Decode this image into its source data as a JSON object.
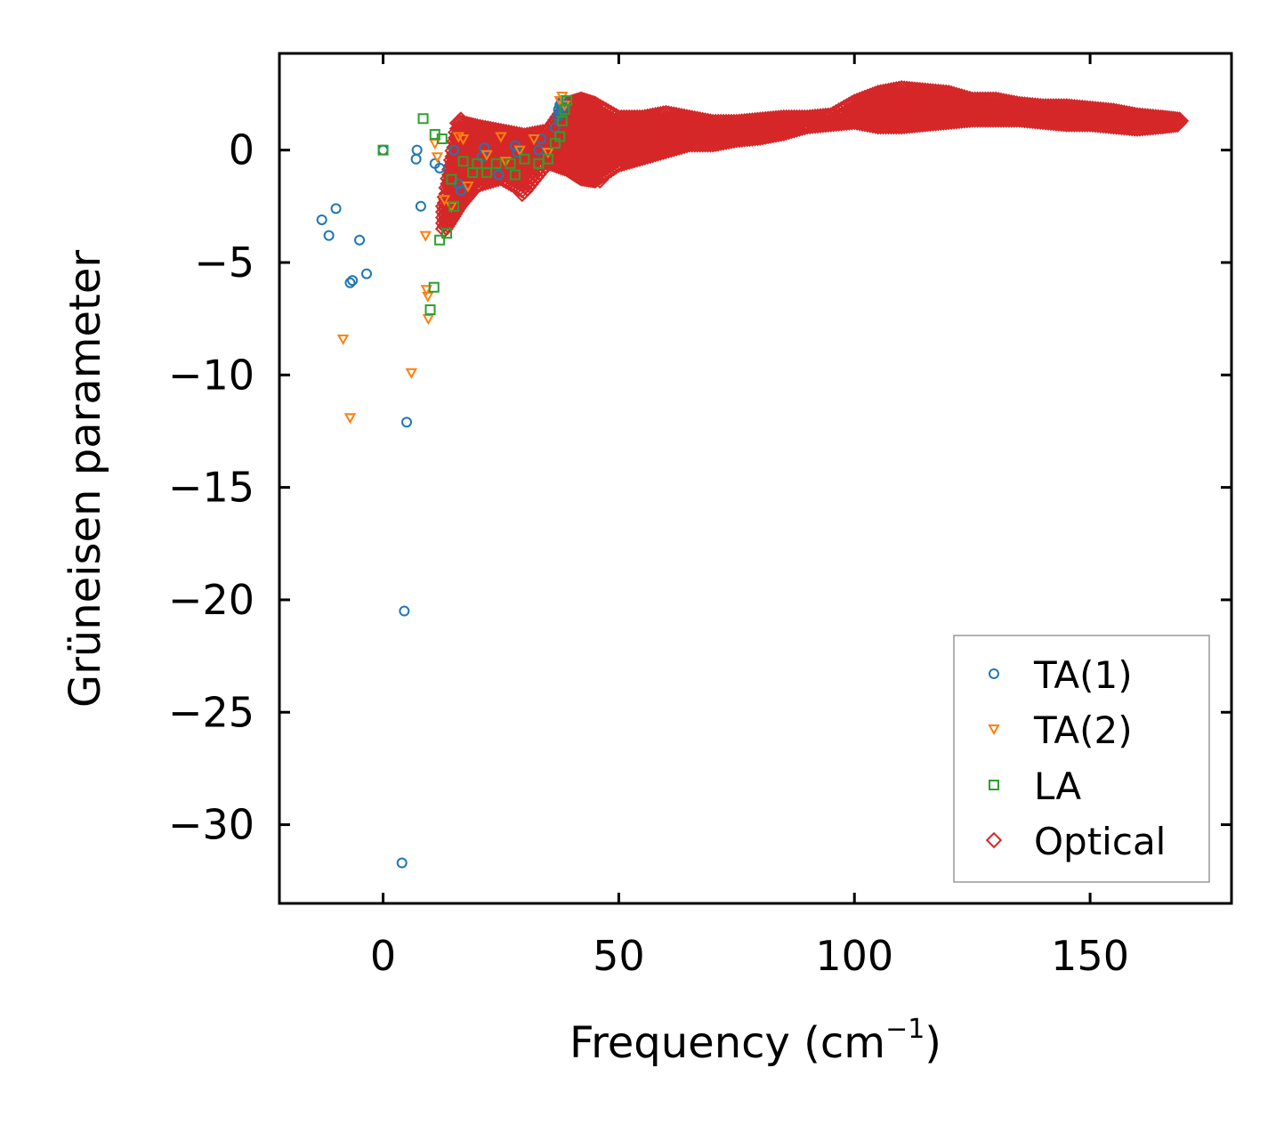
{
  "chart_data": {
    "type": "scatter",
    "title": "",
    "xlabel": "Frequency (cm",
    "xlabel_sup": "−1",
    "xlabel_close": ")",
    "ylabel": "Grüneisen parameter",
    "xlim": [
      -22,
      180
    ],
    "ylim": [
      -33.5,
      4.3
    ],
    "xticks": [
      0,
      50,
      100,
      150
    ],
    "xtick_labels": [
      "0",
      "50",
      "100",
      "150"
    ],
    "yticks": [
      0,
      -5,
      -10,
      -15,
      -20,
      -25,
      -30
    ],
    "ytick_labels": [
      "0",
      "−5",
      "−10",
      "−15",
      "−20",
      "−25",
      "−30"
    ],
    "legend_position": "lower-right",
    "series": [
      {
        "name": "TA(1)",
        "marker": "circle",
        "color": "#1f77b4",
        "points": [
          [
            -13,
            -3.1
          ],
          [
            -11.5,
            -3.8
          ],
          [
            -10,
            -2.6
          ],
          [
            -7,
            -5.9
          ],
          [
            -6.5,
            -5.8
          ],
          [
            -5,
            -4
          ],
          [
            -3.5,
            -5.5
          ],
          [
            0,
            0
          ],
          [
            4,
            -31.7
          ],
          [
            4.5,
            -20.5
          ],
          [
            5,
            -12.1
          ],
          [
            7,
            -0.4
          ],
          [
            7.2,
            0
          ],
          [
            8,
            -2.5
          ],
          [
            11,
            -0.6
          ],
          [
            12,
            -0.8
          ],
          [
            15,
            0
          ],
          [
            16,
            -1.5
          ],
          [
            16.5,
            -1.8
          ],
          [
            21,
            -0.3
          ],
          [
            21.5,
            0.1
          ],
          [
            24.5,
            -1.1
          ],
          [
            28,
            0.2
          ],
          [
            28.5,
            -0.1
          ],
          [
            33,
            0
          ],
          [
            33.5,
            0.5
          ],
          [
            36.5,
            1
          ],
          [
            37,
            1.5
          ],
          [
            37.2,
            1.8
          ],
          [
            37.5,
            2
          ],
          [
            37.8,
            2.1
          ],
          [
            38,
            2.2
          ],
          [
            38.2,
            1.9
          ],
          [
            37.6,
            1.6
          ]
        ]
      },
      {
        "name": "TA(2)",
        "marker": "triangle-down",
        "color": "#ff7f0e",
        "points": [
          [
            -8.5,
            -8.4
          ],
          [
            -7,
            -11.9
          ],
          [
            6,
            -9.9
          ],
          [
            9.2,
            -6.2
          ],
          [
            9.5,
            -6.5
          ],
          [
            9.6,
            -7.5
          ],
          [
            9,
            -3.8
          ],
          [
            11,
            0.3
          ],
          [
            11.5,
            -0.3
          ],
          [
            13,
            -2.2
          ],
          [
            14.5,
            -2.5
          ],
          [
            16,
            0.6
          ],
          [
            17,
            0.5
          ],
          [
            18,
            -1.6
          ],
          [
            22,
            -0.2
          ],
          [
            25,
            0.6
          ],
          [
            26,
            -0.5
          ],
          [
            29,
            0
          ],
          [
            32,
            0.5
          ],
          [
            35,
            -0.1
          ],
          [
            37.5,
            2.2
          ],
          [
            38,
            2.4
          ],
          [
            38.5,
            2
          ]
        ]
      },
      {
        "name": "LA",
        "marker": "square",
        "color": "#2ca02c",
        "points": [
          [
            0,
            0
          ],
          [
            8.5,
            1.4
          ],
          [
            10,
            -7.1
          ],
          [
            10.8,
            -6.1
          ],
          [
            11,
            0.7
          ],
          [
            12,
            -4
          ],
          [
            12.5,
            0.5
          ],
          [
            13.5,
            -3.7
          ],
          [
            14.5,
            -1.3
          ],
          [
            15,
            -2.5
          ],
          [
            17,
            -0.5
          ],
          [
            19,
            -1
          ],
          [
            20,
            -0.6
          ],
          [
            22,
            -1
          ],
          [
            24,
            -0.6
          ],
          [
            27,
            -0.6
          ],
          [
            28,
            -1.1
          ],
          [
            30,
            -0.4
          ],
          [
            33,
            -0.6
          ],
          [
            35,
            -0.4
          ],
          [
            36.5,
            0.3
          ],
          [
            37.5,
            0.6
          ],
          [
            38,
            1.3
          ],
          [
            38.5,
            1.8
          ],
          [
            39,
            2.2
          ]
        ]
      },
      {
        "name": "Optical",
        "marker": "diamond",
        "color": "#d62728",
        "band": [
          [
            13,
            -3.5,
            -2.5
          ],
          [
            16,
            -2.5,
            1.2
          ],
          [
            20,
            -1.5,
            1
          ],
          [
            25,
            -1.2,
            0.8
          ],
          [
            30,
            -1.8,
            0.6
          ],
          [
            35,
            -0.5,
            0.8
          ],
          [
            39,
            -0.8,
            2
          ],
          [
            42,
            -1.2,
            2.2
          ],
          [
            45,
            -1.3,
            2
          ],
          [
            50,
            -0.6,
            1.4
          ],
          [
            55,
            -0.3,
            1.4
          ],
          [
            60,
            0,
            1.6
          ],
          [
            65,
            0.3,
            1.4
          ],
          [
            70,
            0.3,
            1.2
          ],
          [
            75,
            0.5,
            1.2
          ],
          [
            80,
            0.6,
            1.3
          ],
          [
            85,
            0.8,
            1.4
          ],
          [
            90,
            1.1,
            1.4
          ],
          [
            95,
            1.2,
            1.5
          ],
          [
            100,
            1.3,
            2.1
          ],
          [
            105,
            1.1,
            2.5
          ],
          [
            110,
            1.1,
            2.7
          ],
          [
            115,
            1.2,
            2.6
          ],
          [
            120,
            1.3,
            2.5
          ],
          [
            125,
            1.4,
            2.2
          ],
          [
            130,
            1.4,
            2.2
          ],
          [
            135,
            1.4,
            2
          ],
          [
            140,
            1.3,
            1.9
          ],
          [
            145,
            1.2,
            1.9
          ],
          [
            150,
            1.2,
            1.8
          ],
          [
            155,
            1.1,
            1.7
          ],
          [
            160,
            1,
            1.5
          ],
          [
            165,
            1.1,
            1.4
          ],
          [
            169,
            1.2,
            1.3
          ]
        ],
        "points": [
          [
            15,
            -2.6
          ],
          [
            16.5,
            1.3
          ],
          [
            17.5,
            1
          ],
          [
            21,
            0.5
          ],
          [
            23,
            -0.8
          ],
          [
            27,
            -1.2
          ],
          [
            29.5,
            -1.9
          ],
          [
            31,
            -1.1
          ],
          [
            34,
            0.3
          ],
          [
            45,
            2
          ],
          [
            46,
            -1.3
          ],
          [
            62,
            1.5
          ],
          [
            103,
            2.3
          ],
          [
            113,
            2.6
          ],
          [
            166,
            1.3
          ],
          [
            169,
            1.3
          ]
        ]
      }
    ]
  }
}
